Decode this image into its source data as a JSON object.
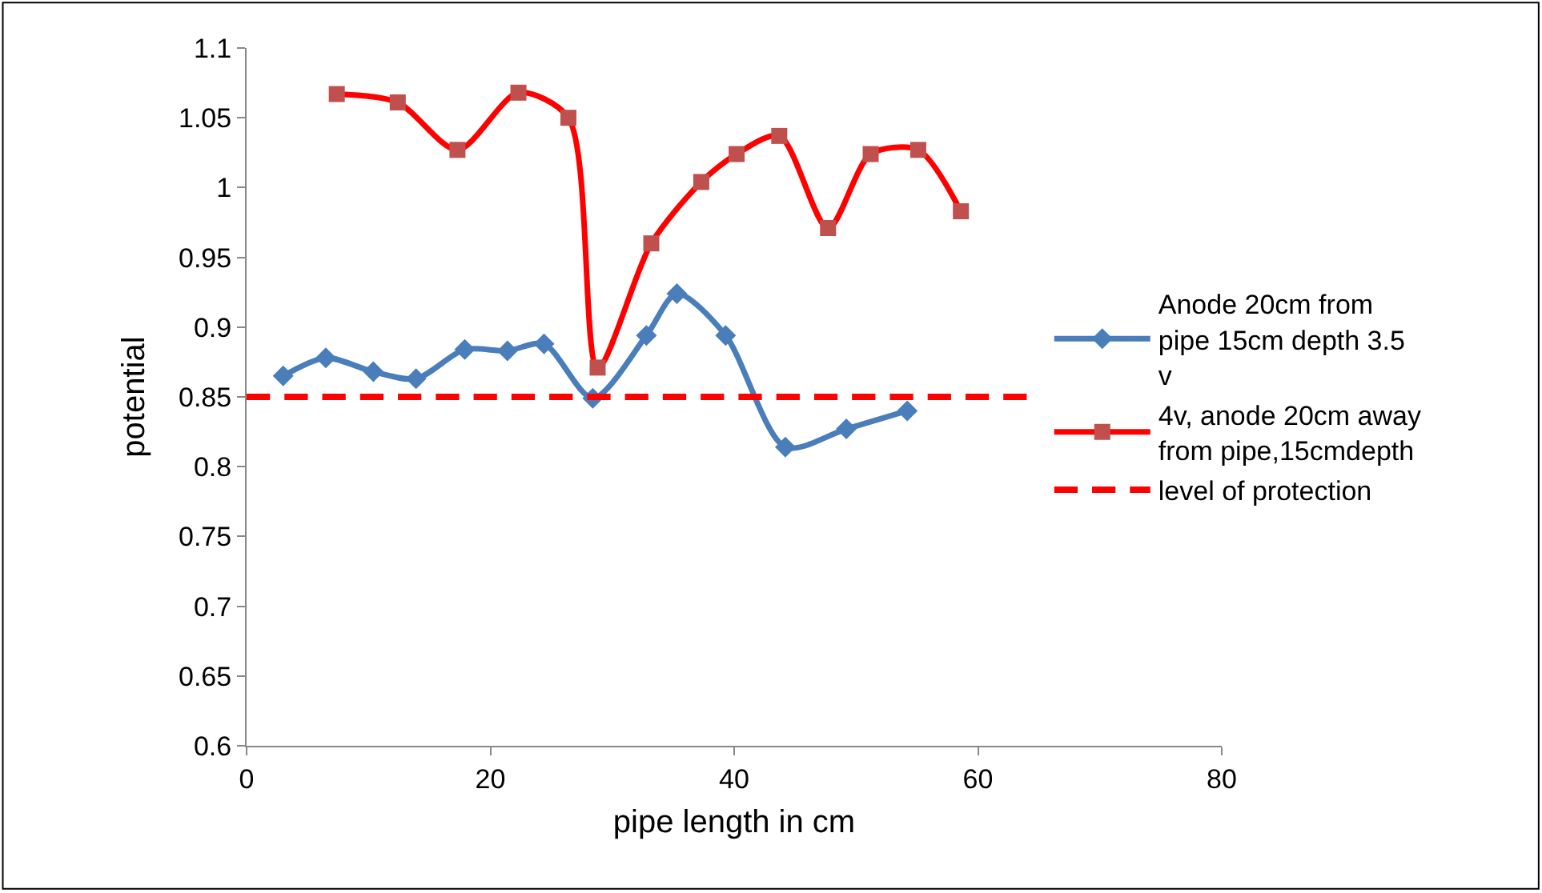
{
  "chart_data": {
    "type": "line",
    "xlabel": "pipe length in cm",
    "ylabel": "potential",
    "xlim": [
      0,
      80
    ],
    "xticks": [
      0,
      20,
      40,
      60,
      80
    ],
    "ylim": [
      0.6,
      1.1
    ],
    "yticks": [
      0.6,
      0.65,
      0.7,
      0.75,
      0.8,
      0.85,
      0.9,
      0.95,
      1,
      1.05,
      1.1
    ],
    "legend": "right",
    "series": [
      {
        "name": "Anode 20cm from pipe 15cm depth 3.5 v",
        "color": "#4a7ebb",
        "marker": "diamond",
        "line_style": "solid",
        "x": [
          3.0,
          6.5,
          10.4,
          13.9,
          17.9,
          21.4,
          24.4,
          28.4,
          32.8,
          35.3,
          39.3,
          44.2,
          49.2,
          54.2
        ],
        "values": [
          0.865,
          0.878,
          0.868,
          0.863,
          0.884,
          0.883,
          0.888,
          0.849,
          0.894,
          0.924,
          0.894,
          0.814,
          0.827,
          0.84
        ]
      },
      {
        "name": "4v, anode 20cm away from pipe,15cmdepth",
        "color": "#ff0000",
        "marker": "square",
        "line_style": "solid",
        "x": [
          7.4,
          12.4,
          17.3,
          22.3,
          26.4,
          28.8,
          33.2,
          37.3,
          40.2,
          43.7,
          47.7,
          51.2,
          55.1,
          58.6
        ],
        "values": [
          1.067,
          1.061,
          1.027,
          1.068,
          1.05,
          0.871,
          0.96,
          1.004,
          1.024,
          1.037,
          0.971,
          1.024,
          1.027,
          0.983
        ]
      },
      {
        "name": "level of protection",
        "color": "#ff0000",
        "marker": "none",
        "line_style": "dashed",
        "x": [
          0,
          64
        ],
        "values": [
          0.85,
          0.85
        ]
      }
    ]
  }
}
